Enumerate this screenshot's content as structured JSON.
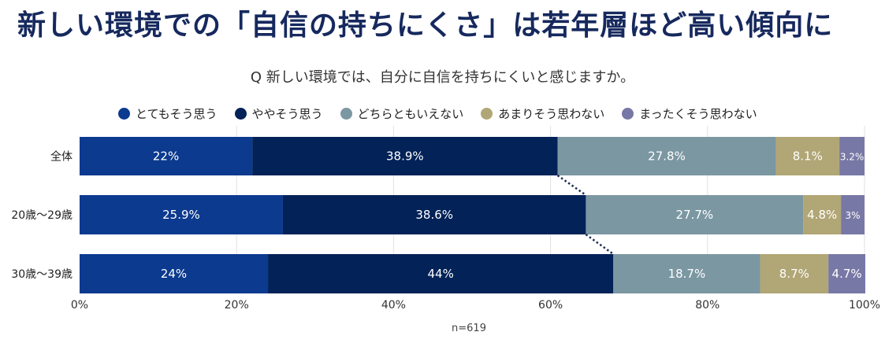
{
  "title": "新しい環境での「自信の持ちにくさ」は若年層ほど高い傾向に",
  "chart_data": {
    "type": "bar",
    "orientation": "horizontal",
    "stacked": true,
    "subtitle": "Q 新しい環境では、自分に自信を持ちにくいと感じますか。",
    "categories": [
      "全体",
      "20歳〜29歳",
      "30歳〜39歳"
    ],
    "series": [
      {
        "name": "とてもそう思う",
        "color": "#0c3a8f",
        "values": [
          22,
          25.9,
          24
        ],
        "labels": [
          "22%",
          "25.9%",
          "24%"
        ]
      },
      {
        "name": "ややそう思う",
        "color": "#022258",
        "values": [
          38.9,
          38.6,
          44
        ],
        "labels": [
          "38.9%",
          "38.6%",
          "44%"
        ]
      },
      {
        "name": "どちらともいえない",
        "color": "#7b97a2",
        "values": [
          27.8,
          27.7,
          18.7
        ],
        "labels": [
          "27.8%",
          "27.7%",
          "18.7%"
        ]
      },
      {
        "name": "あまりそう思わない",
        "color": "#b1a675",
        "values": [
          8.1,
          4.8,
          8.7
        ],
        "labels": [
          "8.1%",
          "4.8%",
          "8.7%"
        ]
      },
      {
        "name": "まったくそう思わない",
        "color": "#7878a6",
        "values": [
          3.2,
          3,
          4.7
        ],
        "labels": [
          "3.2%",
          "3%",
          "4.7%"
        ]
      }
    ],
    "xlim": [
      0,
      100
    ],
    "xticks": [
      "0%",
      "20%",
      "40%",
      "60%",
      "80%",
      "100%"
    ],
    "grid": true,
    "legend": "top",
    "note": "n=619"
  }
}
